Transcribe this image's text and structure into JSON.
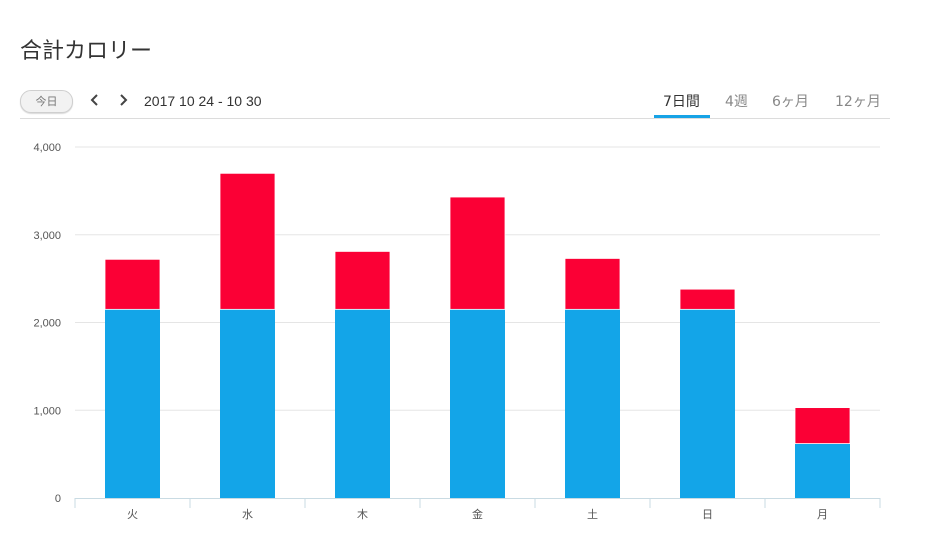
{
  "page": {
    "title": "合計カロリー"
  },
  "toolbar": {
    "today_label": "今日",
    "prev_icon": "chevron-left-icon",
    "next_icon": "chevron-right-icon",
    "date_range": "2017 10 24 - 10 30",
    "tabs": [
      {
        "label": "7日間",
        "active": true
      },
      {
        "label": "4週",
        "active": false
      },
      {
        "label": "6ヶ月",
        "active": false
      },
      {
        "label": "12ヶ月",
        "active": false
      }
    ]
  },
  "colors": {
    "series_base": "#13a5e8",
    "series_extra": "#fb0035",
    "tab_accent": "#17a3e6",
    "grid": "#e5e5e5"
  },
  "chart_data": {
    "type": "bar",
    "stacked": true,
    "categories": [
      "火",
      "水",
      "木",
      "金",
      "土",
      "日",
      "月"
    ],
    "series": [
      {
        "values": [
          2150,
          2150,
          2150,
          2150,
          2150,
          2150,
          620
        ]
      },
      {
        "values": [
          570,
          1550,
          660,
          1280,
          580,
          230,
          410
        ]
      }
    ],
    "ylim": [
      0,
      4000
    ],
    "yticks": [
      "0",
      "1,000",
      "2,000",
      "3,000",
      "4,000"
    ],
    "ytick_values": [
      0,
      1000,
      2000,
      3000,
      4000
    ],
    "grid": true,
    "legend": "none"
  }
}
